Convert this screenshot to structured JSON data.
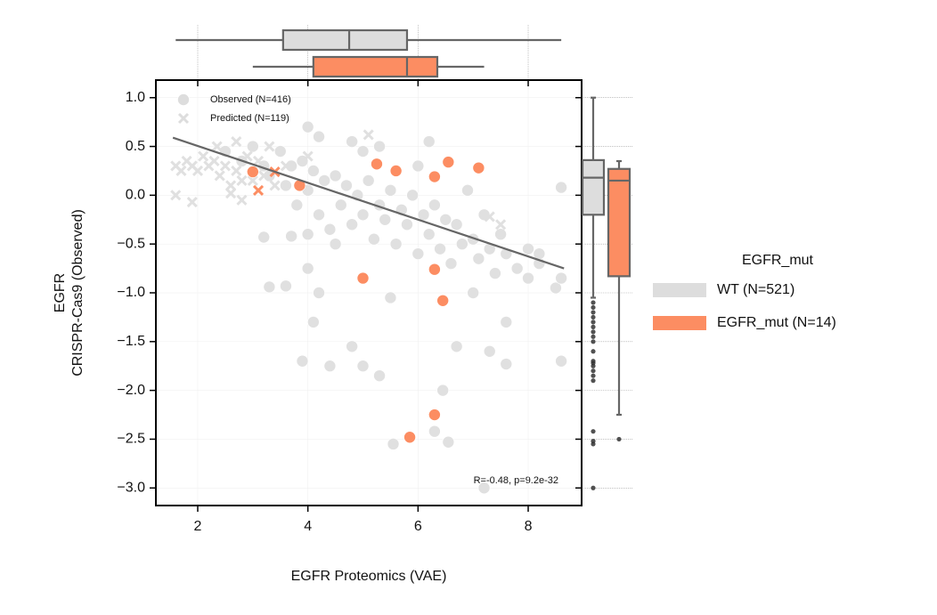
{
  "chart_data": [
    {
      "type": "scatter",
      "xlabel": "EGFR Proteomics (VAE)",
      "ylabel": [
        "EGFR",
        "CRISPR-Cas9 (Observed)"
      ],
      "annotation": "R=-0.48, p=9.2e-32",
      "xlim": [
        1.24,
        8.97
      ],
      "ylim": [
        -3.18,
        1.18
      ],
      "xticks": [
        2,
        4,
        6,
        8
      ],
      "yticks": [
        {
          "value": 1,
          "label": "1.0"
        },
        {
          "value": 0.5,
          "label": "0.5"
        },
        {
          "value": 0,
          "label": "0.0"
        },
        {
          "value": -0.5,
          "label": "−0.5"
        },
        {
          "value": -1,
          "label": "−1.0"
        },
        {
          "value": -1.5,
          "label": "−1.5"
        },
        {
          "value": -2,
          "label": "−2.0"
        },
        {
          "value": -2.5,
          "label": "−2.5"
        },
        {
          "value": -3,
          "label": "−3.0"
        }
      ],
      "marker_legend": [
        {
          "label": "Observed (N=416)",
          "marker": "o"
        },
        {
          "label": "Predicted (N=119)",
          "marker": "x"
        }
      ],
      "color_legend": {
        "title": "EGFR_mut",
        "groups": [
          {
            "name": "WT (N=521)",
            "color": "#dddddd"
          },
          {
            "name": "EGFR_mut (N=14)",
            "color": "#fc8d62"
          }
        ]
      },
      "series": [
        {
          "marker": "o",
          "color": "#e0e0e0",
          "x": [
            2.5,
            2.8,
            3.0,
            3.2,
            3.3,
            3.5,
            3.6,
            3.7,
            3.8,
            3.9,
            4.0,
            4.1,
            4.2,
            4.3,
            4.4,
            4.5,
            4.6,
            4.7,
            4.8,
            4.9,
            5.0,
            5.1,
            5.2,
            5.3,
            5.4,
            5.5,
            5.6,
            5.7,
            5.8,
            5.9,
            6.0,
            6.1,
            6.2,
            6.3,
            6.4,
            6.5,
            6.6,
            6.7,
            6.8,
            6.9,
            7.0,
            7.1,
            7.2,
            7.3,
            7.4,
            7.5,
            7.6,
            7.8,
            8.0,
            8.2,
            8.5,
            8.6,
            3.2,
            3.6,
            3.3,
            3.9,
            4.1,
            4.4,
            4.8,
            5.0,
            5.3,
            5.55,
            6.3,
            6.55,
            6.45,
            7.2,
            7.3,
            7.6,
            8.6,
            4.0,
            3.7,
            4.0,
            4.2,
            4.5,
            5.5,
            6.7,
            7.0,
            7.6,
            8.0,
            8.6,
            8.2,
            6.0,
            6.2,
            5.0,
            5.3,
            4.8,
            4.2,
            4.0
          ],
          "y": [
            0.45,
            0.35,
            0.5,
            0.3,
            0.2,
            0.45,
            0.1,
            0.3,
            -0.1,
            0.35,
            0.05,
            0.25,
            -0.2,
            0.15,
            -0.35,
            0.2,
            -0.1,
            0.1,
            -0.3,
            0.0,
            -0.2,
            0.15,
            -0.45,
            -0.1,
            -0.25,
            0.05,
            -0.5,
            -0.15,
            -0.3,
            0.0,
            -0.6,
            -0.2,
            -0.4,
            -0.1,
            -0.55,
            -0.25,
            -0.7,
            -0.3,
            -0.5,
            0.05,
            -0.45,
            -0.65,
            -0.2,
            -0.55,
            -0.8,
            -0.4,
            -0.6,
            -0.75,
            -0.55,
            -0.7,
            -0.95,
            -0.85,
            -0.43,
            -0.93,
            -0.94,
            -1.7,
            -1.3,
            -1.75,
            -1.55,
            -1.75,
            -1.85,
            -2.55,
            -2.42,
            -2.53,
            -2.0,
            -3.0,
            -1.6,
            -1.73,
            -1.7,
            -0.4,
            -0.42,
            -0.75,
            -1.0,
            -0.5,
            -1.05,
            -1.55,
            -1.0,
            -1.3,
            -0.85,
            0.08,
            -0.6,
            0.3,
            0.55,
            0.45,
            0.5,
            0.55,
            0.6,
            0.7
          ]
        },
        {
          "marker": "x",
          "color": "#e0e0e0",
          "x": [
            1.6,
            1.7,
            1.8,
            1.9,
            2.0,
            2.1,
            2.2,
            2.3,
            2.4,
            2.5,
            2.6,
            2.7,
            2.8,
            2.9,
            3.0,
            3.1,
            3.2,
            2.35,
            2.7,
            3.3,
            1.6,
            1.9,
            2.6,
            2.8,
            3.4,
            3.6,
            4.0,
            7.3,
            5.1,
            7.5
          ],
          "y": [
            0.3,
            0.25,
            0.35,
            0.3,
            0.25,
            0.4,
            0.3,
            0.35,
            0.2,
            0.3,
            0.1,
            0.25,
            0.15,
            0.4,
            0.15,
            0.35,
            0.2,
            0.5,
            0.55,
            0.5,
            0.0,
            -0.07,
            0.02,
            -0.05,
            0.1,
            0.3,
            0.4,
            -0.22,
            0.62,
            -0.3
          ]
        },
        {
          "marker": "o",
          "color": "#fc8d62",
          "x": [
            3.0,
            3.85,
            5.25,
            5.6,
            6.3,
            6.55,
            7.1,
            5.0,
            6.3,
            6.45,
            6.3,
            5.85
          ],
          "y": [
            0.24,
            0.1,
            0.32,
            0.25,
            0.19,
            0.34,
            0.28,
            -0.85,
            -0.76,
            -1.08,
            -2.25,
            -2.48
          ]
        },
        {
          "marker": "x",
          "color": "#fc8d62",
          "x": [
            3.4,
            3.1
          ],
          "y": [
            0.24,
            0.05
          ]
        }
      ],
      "fit": {
        "color": "#666666",
        "x": [
          1.55,
          8.65
        ],
        "y": [
          0.59,
          -0.75
        ]
      }
    },
    {
      "type": "boxplot",
      "orientation": "horizontal",
      "boxes": [
        {
          "color": "#dddddd",
          "whislo": 1.6,
          "q1": 3.55,
          "med": 4.75,
          "q3": 5.8,
          "whishi": 8.6,
          "fliers": []
        },
        {
          "color": "#fc8d62",
          "whislo": 3.0,
          "q1": 4.1,
          "med": 5.8,
          "q3": 6.35,
          "whishi": 7.2,
          "fliers": []
        }
      ]
    },
    {
      "type": "boxplot",
      "orientation": "vertical",
      "boxes": [
        {
          "color": "#dddddd",
          "whislo": -1.05,
          "q1": -0.2,
          "med": 0.18,
          "q3": 0.36,
          "whishi": 1.0,
          "fliers": [
            -1.1,
            -1.15,
            -1.2,
            -1.25,
            -1.3,
            -1.35,
            -1.4,
            -1.45,
            -1.5,
            -1.6,
            -1.7,
            -1.72,
            -1.75,
            -1.8,
            -1.85,
            -1.9,
            -2.42,
            -2.52,
            -2.55,
            -3.0
          ]
        },
        {
          "color": "#fc8d62",
          "whislo": -2.25,
          "q1": -0.83,
          "med": 0.15,
          "q3": 0.27,
          "whishi": 0.35,
          "fliers": [
            -2.5
          ]
        }
      ]
    }
  ]
}
